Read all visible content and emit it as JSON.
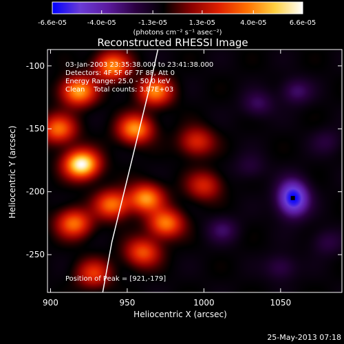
{
  "chart_data": {
    "type": "heatmap",
    "title": "Reconstructed RHESSI Image",
    "xlabel": "Heliocentric X (arcsec)",
    "ylabel": "Heliocentric Y (arcsec)",
    "xlim": [
      898,
      1090
    ],
    "ylim": [
      -280,
      -87
    ],
    "x_ticks": [
      "900",
      "950",
      "1000",
      "1050"
    ],
    "x_tick_values": [
      900,
      950,
      1000,
      1050
    ],
    "y_ticks": [
      "-100",
      "-150",
      "-200",
      "-250"
    ],
    "y_tick_values": [
      -100,
      -150,
      -200,
      -250
    ],
    "colorbar": {
      "ticks": [
        "-6.6e-05",
        "-4.0e-05",
        "-1.3e-05",
        "1.3e-05",
        "4.0e-05",
        "6.6e-05"
      ],
      "tick_values": [
        -6.6e-05,
        -4e-05,
        -1.3e-05,
        1.3e-05,
        4e-05,
        6.6e-05
      ],
      "range": [
        -6.6e-05,
        6.6e-05
      ],
      "units": "(photons cm⁻² s⁻¹ asec⁻²)",
      "colors": [
        "#0000ff",
        "#6a3bd6",
        "#5b1a9e",
        "#2a0040",
        "#000000",
        "#8a0000",
        "#e02000",
        "#ff7000",
        "#ffd040",
        "#ffffff"
      ]
    },
    "annotations": [
      "03-Jan-2003 23:35:38.000 to 23:41:38.000",
      "Detectors: 4F 5F 6F 7F 8F, Att 0",
      "Energy Range: 25.0 - 50.0 keV",
      "Clean    Total counts: 3.87E+03"
    ],
    "peak_label": "Position of Peak = [921,-179]",
    "peak": [
      921,
      -179
    ],
    "bright_sources": [
      {
        "x": 920,
        "y": -178,
        "v": 6.6e-05
      },
      {
        "x": 918,
        "y": -120,
        "v": 4.5e-05
      },
      {
        "x": 940,
        "y": -100,
        "v": 4e-05
      },
      {
        "x": 955,
        "y": -150,
        "v": 4.2e-05
      },
      {
        "x": 905,
        "y": -150,
        "v": 3.5e-05
      },
      {
        "x": 968,
        "y": -120,
        "v": 3.8e-05
      },
      {
        "x": 962,
        "y": -205,
        "v": 4.2e-05
      },
      {
        "x": 940,
        "y": -210,
        "v": 3.6e-05
      },
      {
        "x": 915,
        "y": -225,
        "v": 3.6e-05
      },
      {
        "x": 975,
        "y": -225,
        "v": 3.8e-05
      },
      {
        "x": 960,
        "y": -248,
        "v": 3e-05
      },
      {
        "x": 928,
        "y": -265,
        "v": 2.4e-05
      },
      {
        "x": 995,
        "y": -160,
        "v": 2.2e-05
      },
      {
        "x": 1000,
        "y": -195,
        "v": 2e-05
      }
    ],
    "dark_sources": [
      {
        "x": 1058,
        "y": -205,
        "v": -6.6e-05
      },
      {
        "x": 1060,
        "y": -120,
        "v": -2.8e-05
      },
      {
        "x": 1035,
        "y": -130,
        "v": -2.6e-05
      },
      {
        "x": 1030,
        "y": -180,
        "v": -2e-05
      },
      {
        "x": 1012,
        "y": -230,
        "v": -2.6e-05
      },
      {
        "x": 1050,
        "y": -260,
        "v": -2.4e-05
      },
      {
        "x": 1080,
        "y": -160,
        "v": -2e-05
      },
      {
        "x": 1080,
        "y": -240,
        "v": -2.2e-05
      }
    ],
    "limb_curve": [
      [
        970,
        -87
      ],
      [
        964,
        -120
      ],
      [
        956,
        -160
      ],
      [
        948,
        -200
      ],
      [
        940,
        -240
      ],
      [
        934,
        -280
      ]
    ],
    "grid": false
  },
  "footer": {
    "timestamp": "25-May-2013 07:18"
  }
}
